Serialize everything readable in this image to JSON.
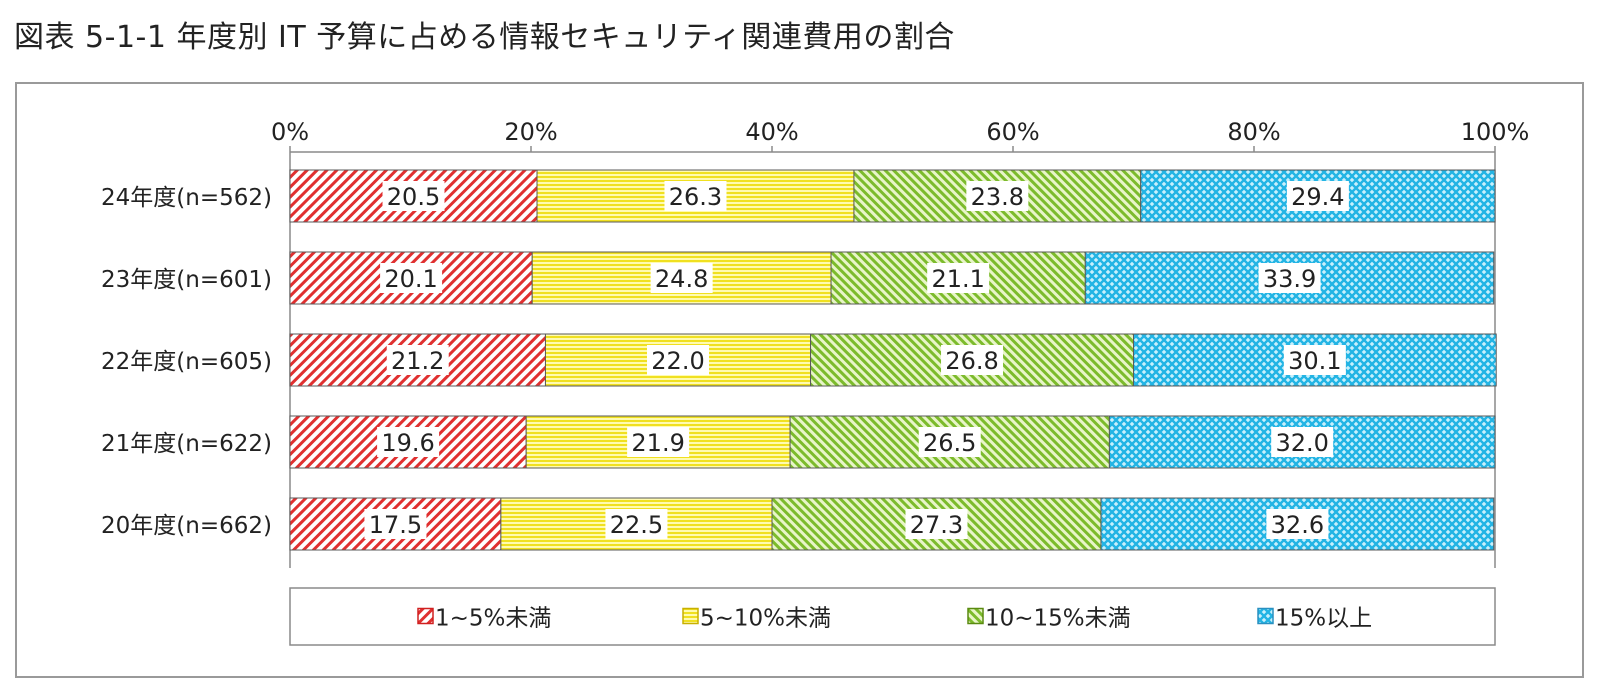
{
  "title": "図表 5-1-1  年度別  IT 予算に占める情報セキュリティ関連費用の割合",
  "legend_style": {
    "swatch_borders": [
      "#d02020",
      "#c8b000",
      "#5a8a10",
      "#2a90c0"
    ]
  },
  "chart_data": {
    "type": "bar",
    "orientation": "horizontal",
    "stacked": true,
    "percent": true,
    "xlim": [
      0,
      100
    ],
    "x_ticks": [
      "0%",
      "20%",
      "40%",
      "60%",
      "80%",
      "100%"
    ],
    "x_tick_values": [
      0,
      20,
      40,
      60,
      80,
      100
    ],
    "x_axis_position": "top",
    "grid": false,
    "legend_position": "bottom",
    "categories": [
      "24年度(n=562)",
      "23年度(n=601)",
      "22年度(n=605)",
      "21年度(n=622)",
      "20年度(n=662)"
    ],
    "series": [
      {
        "name": "1~5%未満",
        "values": [
          20.5,
          20.1,
          21.2,
          19.6,
          17.5
        ],
        "labels": [
          "20.5",
          "20.1",
          "21.2",
          "19.6",
          "17.5"
        ],
        "color": "#e03030",
        "pattern": "diagonal-red"
      },
      {
        "name": "5~10%未満",
        "values": [
          26.3,
          24.8,
          22.0,
          21.9,
          22.5
        ],
        "labels": [
          "26.3",
          "24.8",
          "22.0",
          "21.9",
          "22.5"
        ],
        "color": "#f4e830",
        "pattern": "horizontal-yellow"
      },
      {
        "name": "10~15%未満",
        "values": [
          23.8,
          21.1,
          26.8,
          26.5,
          27.3
        ],
        "labels": [
          "23.8",
          "21.1",
          "26.8",
          "26.5",
          "27.3"
        ],
        "color": "#8cc63f",
        "pattern": "diagonal-green"
      },
      {
        "name": "15%以上",
        "values": [
          29.4,
          33.9,
          30.1,
          32.0,
          32.6
        ],
        "labels": [
          "29.4",
          "33.9",
          "30.1",
          "32.0",
          "32.6"
        ],
        "color": "#3fc4ec",
        "pattern": "crosshatch-blue"
      }
    ]
  }
}
